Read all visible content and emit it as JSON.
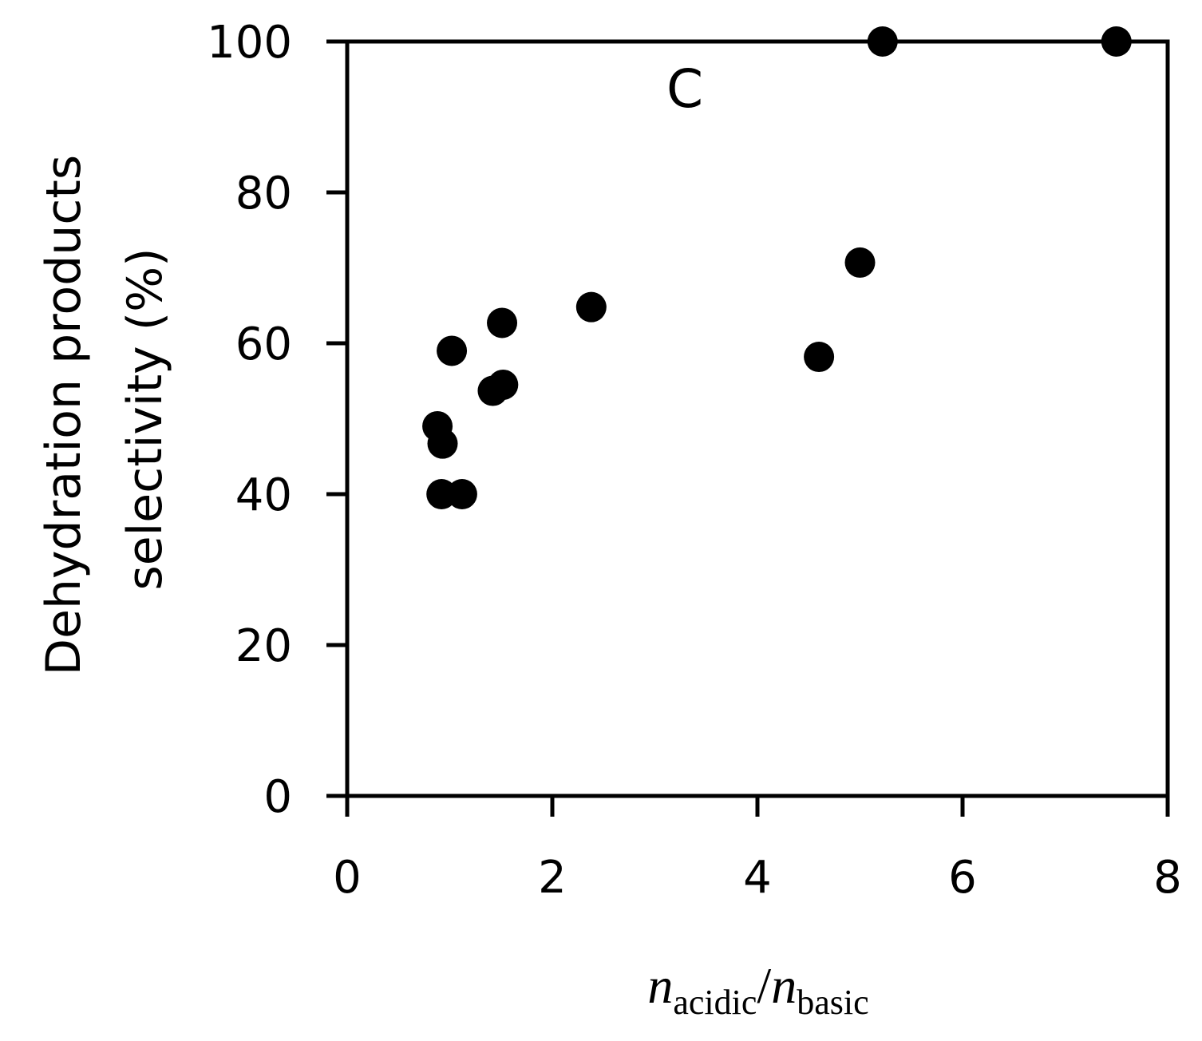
{
  "chart_data": {
    "type": "scatter",
    "panel_label": "C",
    "xlabel": {
      "n1": "n",
      "sub1": "acidic",
      "slash": "/",
      "n2": "n",
      "sub2": "basic"
    },
    "ylabel_lines": [
      "Dehydration products",
      "selectivity (%)"
    ],
    "xlim": [
      0,
      8
    ],
    "ylim": [
      0,
      100
    ],
    "xticks": [
      0,
      2,
      4,
      6,
      8
    ],
    "yticks": [
      0,
      20,
      40,
      60,
      80,
      100
    ],
    "grid": false,
    "marker_color": "#000000",
    "series": [
      {
        "x": [
          0.88,
          0.93,
          0.92,
          1.02,
          1.12,
          1.42,
          1.52,
          1.51,
          2.38,
          4.6,
          5.0,
          5.22,
          7.5
        ],
        "y": [
          49.0,
          46.7,
          40.0,
          59.0,
          40.0,
          53.7,
          54.5,
          62.7,
          64.8,
          58.2,
          70.7,
          100.0,
          100.0
        ]
      }
    ]
  }
}
